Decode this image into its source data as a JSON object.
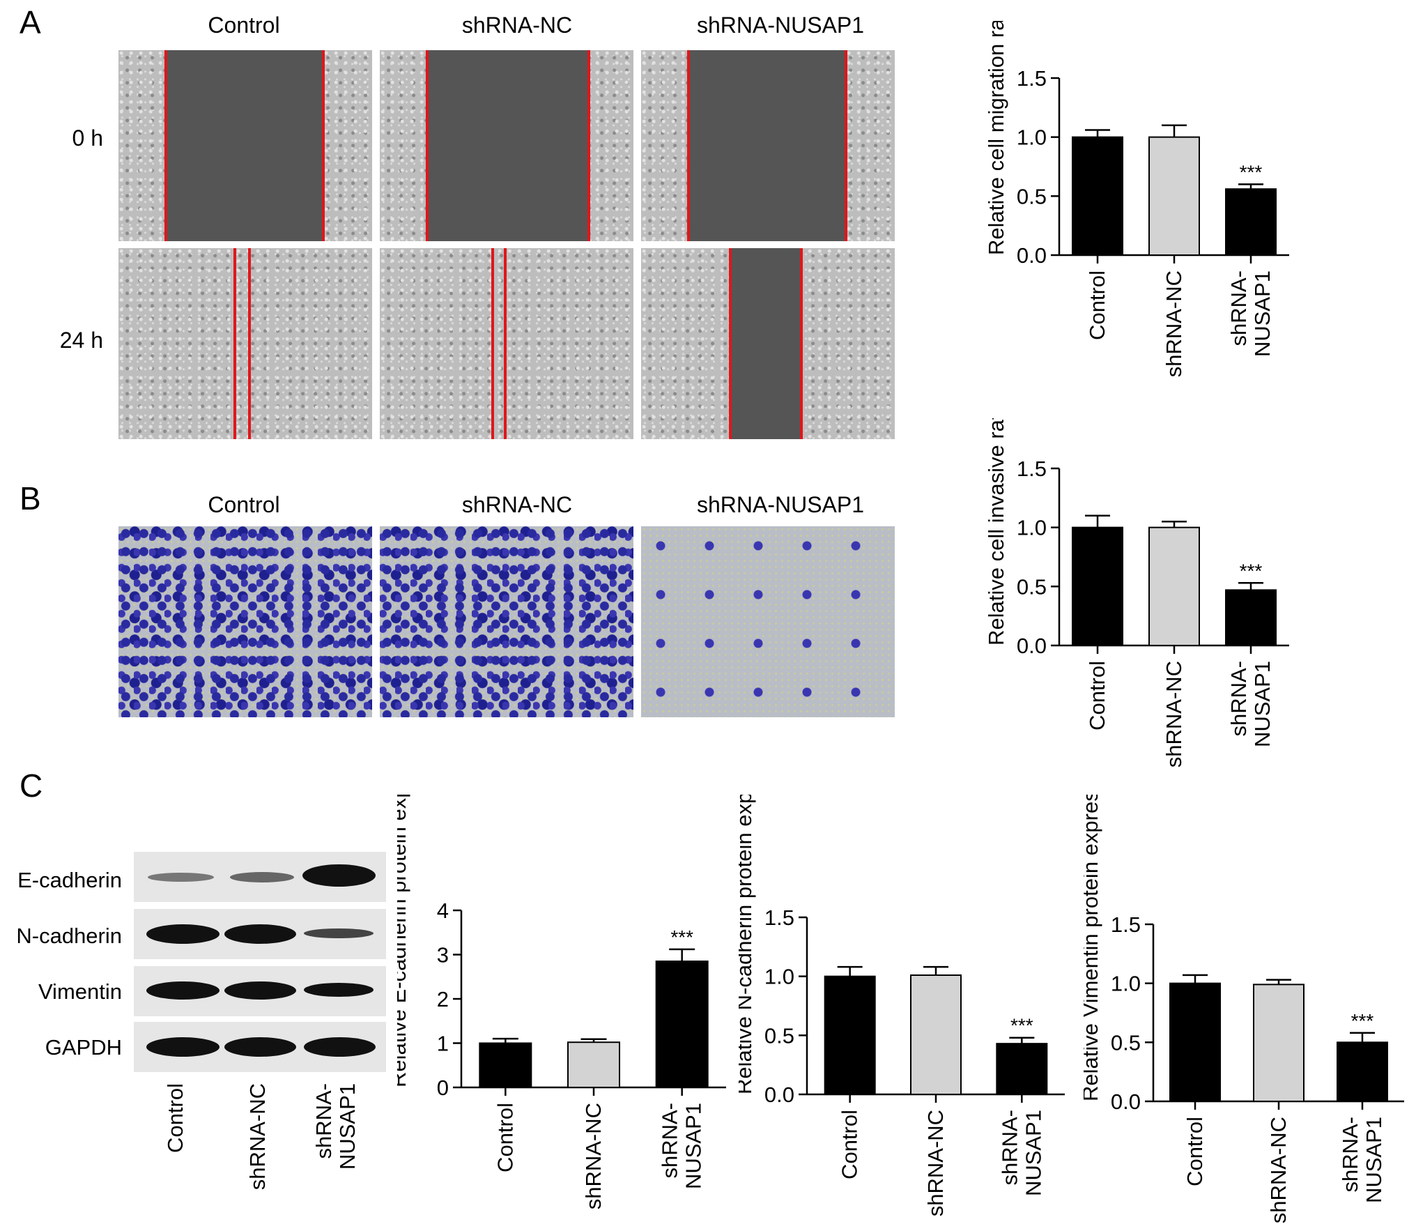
{
  "panels": {
    "a": "A",
    "b": "B",
    "c": "C"
  },
  "groups": [
    "Control",
    "shRNA-NC",
    "shRNA-NUSAP1"
  ],
  "rows": {
    "t0": "0 h",
    "t24": "24 h"
  },
  "blot": {
    "proteins": [
      "E-cadherin",
      "N-cadherin",
      "Vimentin",
      "GAPDH"
    ],
    "lanes": [
      "Control",
      "shRNA-NC",
      "shRNA-NUSAP1"
    ]
  },
  "colors": {
    "black_bar": "#000000",
    "grey_bar": "#d3d3d3",
    "scratch_line": "#e0161b"
  },
  "chart_data": [
    {
      "id": "migration",
      "type": "bar",
      "title": "",
      "ylabel": "Relative cell migration rate",
      "xlabel": "",
      "categories": [
        "Control",
        "shRNA-NC",
        "shRNA-NUSAP1"
      ],
      "tick_labels": [
        [
          "Control"
        ],
        [
          "shRNA-NC"
        ],
        [
          "shRNA-",
          "NUSAP1"
        ]
      ],
      "values": [
        1.0,
        1.0,
        0.56
      ],
      "errors": [
        0.06,
        0.1,
        0.04
      ],
      "bar_colors": [
        "#000000",
        "#d3d3d3",
        "#000000"
      ],
      "significance": [
        "",
        "",
        "***"
      ],
      "ylim": [
        0,
        1.5
      ],
      "yticks": [
        "0.0",
        "0.5",
        "1.0",
        "1.5"
      ]
    },
    {
      "id": "invasion",
      "type": "bar",
      "title": "",
      "ylabel": "Relative cell invasive rate",
      "xlabel": "",
      "categories": [
        "Control",
        "shRNA-NC",
        "shRNA-NUSAP1"
      ],
      "tick_labels": [
        [
          "Control"
        ],
        [
          "shRNA-NC"
        ],
        [
          "shRNA-",
          "NUSAP1"
        ]
      ],
      "values": [
        1.0,
        1.0,
        0.47
      ],
      "errors": [
        0.1,
        0.05,
        0.06
      ],
      "bar_colors": [
        "#000000",
        "#d3d3d3",
        "#000000"
      ],
      "significance": [
        "",
        "",
        "***"
      ],
      "ylim": [
        0,
        1.5
      ],
      "yticks": [
        "0.0",
        "0.5",
        "1.0",
        "1.5"
      ]
    },
    {
      "id": "ecadherin",
      "type": "bar",
      "title": "",
      "ylabel": "Relative E-cadherin protein expression",
      "xlabel": "",
      "categories": [
        "Control",
        "shRNA-NC",
        "shRNA-NUSAP1"
      ],
      "tick_labels": [
        [
          "Control"
        ],
        [
          "shRNA-NC"
        ],
        [
          "shRNA-",
          "NUSAP1"
        ]
      ],
      "values": [
        1.0,
        1.02,
        2.85
      ],
      "errors": [
        0.1,
        0.07,
        0.27
      ],
      "bar_colors": [
        "#000000",
        "#d3d3d3",
        "#000000"
      ],
      "significance": [
        "",
        "",
        "***"
      ],
      "ylim": [
        0,
        4
      ],
      "yticks": [
        "0",
        "1",
        "2",
        "3",
        "4"
      ]
    },
    {
      "id": "ncadherin",
      "type": "bar",
      "title": "",
      "ylabel": "Relative N-cadherin protein expression",
      "xlabel": "",
      "categories": [
        "Control",
        "shRNA-NC",
        "shRNA-NUSAP1"
      ],
      "tick_labels": [
        [
          "Control"
        ],
        [
          "shRNA-NC"
        ],
        [
          "shRNA-",
          "NUSAP1"
        ]
      ],
      "values": [
        1.0,
        1.01,
        0.43
      ],
      "errors": [
        0.08,
        0.07,
        0.05
      ],
      "bar_colors": [
        "#000000",
        "#d3d3d3",
        "#000000"
      ],
      "significance": [
        "",
        "",
        "***"
      ],
      "ylim": [
        0,
        1.5
      ],
      "yticks": [
        "0.0",
        "0.5",
        "1.0",
        "1.5"
      ]
    },
    {
      "id": "vimentin",
      "type": "bar",
      "title": "",
      "ylabel": "Relative Vimentin protein expression",
      "xlabel": "",
      "categories": [
        "Control",
        "shRNA-NC",
        "shRNA-NUSAP1"
      ],
      "tick_labels": [
        [
          "Control"
        ],
        [
          "shRNA-NC"
        ],
        [
          "shRNA-",
          "NUSAP1"
        ]
      ],
      "values": [
        1.0,
        0.99,
        0.5
      ],
      "errors": [
        0.07,
        0.04,
        0.08
      ],
      "bar_colors": [
        "#000000",
        "#d3d3d3",
        "#000000"
      ],
      "significance": [
        "",
        "",
        "***"
      ],
      "ylim": [
        0,
        1.5
      ],
      "yticks": [
        "0.0",
        "0.5",
        "1.0",
        "1.5"
      ]
    }
  ]
}
